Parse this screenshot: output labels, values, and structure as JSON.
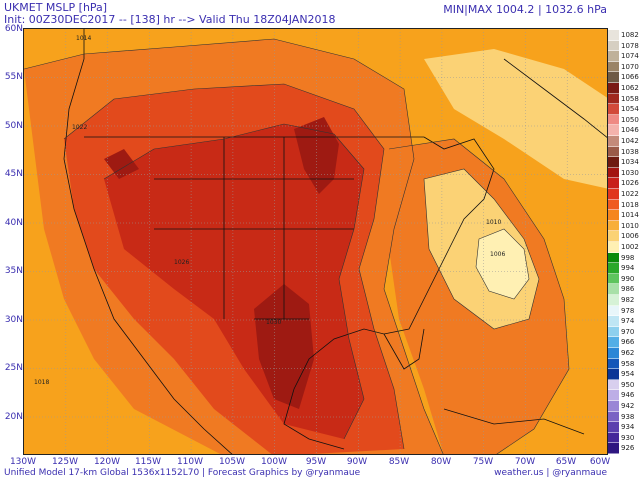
{
  "header": {
    "title": "UKMET MSLP [hPa]",
    "init_line": "Init: 00Z30DEC2017 -- [138] hr --> Valid Thu 18Z04JAN2018",
    "minmax_prefix": "MIN|MAX",
    "min_value": "1004.2",
    "max_value": "1032.6 hPa"
  },
  "axes": {
    "lat_labels": [
      "60N",
      "55N",
      "50N",
      "45N",
      "40N",
      "35N",
      "30N",
      "25N",
      "20N"
    ],
    "lon_labels": [
      "130W",
      "125W",
      "120W",
      "115W",
      "110W",
      "105W",
      "100W",
      "95W",
      "90W",
      "85W",
      "80W",
      "75W",
      "70W",
      "65W",
      "60W"
    ]
  },
  "footer": {
    "left": "Unified Model 17-km Global 1536x1152L70 | Forecast Graphics by @ryanmaue",
    "right": "weather.us | @ryanmaue"
  },
  "legend": {
    "levels": [
      {
        "value": "1082",
        "color": "#e8e4dc"
      },
      {
        "value": "1078",
        "color": "#d6cfc2"
      },
      {
        "value": "1074",
        "color": "#bfb19a"
      },
      {
        "value": "1070",
        "color": "#9a8466"
      },
      {
        "value": "1066",
        "color": "#6e5a44"
      },
      {
        "value": "1062",
        "color": "#7a1a14"
      },
      {
        "value": "1058",
        "color": "#a0281e"
      },
      {
        "value": "1054",
        "color": "#d24a3a"
      },
      {
        "value": "1050",
        "color": "#ef8a84"
      },
      {
        "value": "1046",
        "color": "#f4b2ac"
      },
      {
        "value": "1042",
        "color": "#c38a7a"
      },
      {
        "value": "1038",
        "color": "#9a5a48"
      },
      {
        "value": "1034",
        "color": "#6e1a10"
      },
      {
        "value": "1030",
        "color": "#a31410"
      },
      {
        "value": "1026",
        "color": "#c8201a"
      },
      {
        "value": "1022",
        "color": "#e0361e"
      },
      {
        "value": "1018",
        "color": "#ef5a20"
      },
      {
        "value": "1014",
        "color": "#f5861e"
      },
      {
        "value": "1010",
        "color": "#f8ae3a"
      },
      {
        "value": "1006",
        "color": "#fbd275"
      },
      {
        "value": "1002",
        "color": "#fff0b3"
      },
      {
        "value": "998",
        "color": "#0a8a0a"
      },
      {
        "value": "994",
        "color": "#2aa82a"
      },
      {
        "value": "990",
        "color": "#5ec45e"
      },
      {
        "value": "986",
        "color": "#a8e0a8"
      },
      {
        "value": "982",
        "color": "#d6f2d6"
      },
      {
        "value": "978",
        "color": "#e8f6fa"
      },
      {
        "value": "974",
        "color": "#bfe6f4"
      },
      {
        "value": "970",
        "color": "#8dd0ee"
      },
      {
        "value": "966",
        "color": "#52aee6"
      },
      {
        "value": "962",
        "color": "#2a86d6"
      },
      {
        "value": "958",
        "color": "#1456b8"
      },
      {
        "value": "954",
        "color": "#0a3696"
      },
      {
        "value": "950",
        "color": "#d8cfee"
      },
      {
        "value": "946",
        "color": "#bdaee6"
      },
      {
        "value": "942",
        "color": "#9a86d6"
      },
      {
        "value": "938",
        "color": "#7a62c4"
      },
      {
        "value": "934",
        "color": "#5a40ae"
      },
      {
        "value": "930",
        "color": "#44289a"
      },
      {
        "value": "926",
        "color": "#2e1680"
      }
    ]
  },
  "contour_labels": [
    "1014",
    "1010",
    "1006",
    "1022",
    "1026",
    "1030",
    "1018"
  ],
  "map_colors": {
    "ocean_base": "#f7a21c",
    "mid": "#f07a22",
    "inner": "#e24a1c",
    "core": "#c82a16",
    "max": "#9e1a12",
    "east_low": "#fbd275",
    "low_center": "#fff0b3"
  }
}
